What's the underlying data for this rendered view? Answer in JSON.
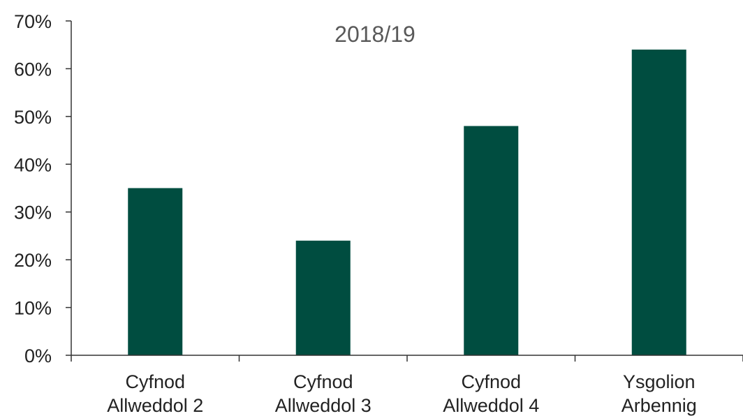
{
  "chart_data": {
    "type": "bar",
    "title": "2018/19",
    "categories": [
      [
        "Cyfnod",
        "Allweddol 2"
      ],
      [
        "Cyfnod",
        "Allweddol 3"
      ],
      [
        "Cyfnod",
        "Allweddol 4"
      ],
      [
        "Ysgolion",
        "Arbennig"
      ]
    ],
    "values": [
      0.35,
      0.24,
      0.48,
      0.64
    ],
    "ylim": [
      0,
      0.7
    ],
    "yticks": [
      "0%",
      "10%",
      "20%",
      "30%",
      "40%",
      "50%",
      "60%",
      "70%"
    ],
    "xlabel": "",
    "ylabel": "",
    "grid": false,
    "bar_color": "#004d40"
  }
}
